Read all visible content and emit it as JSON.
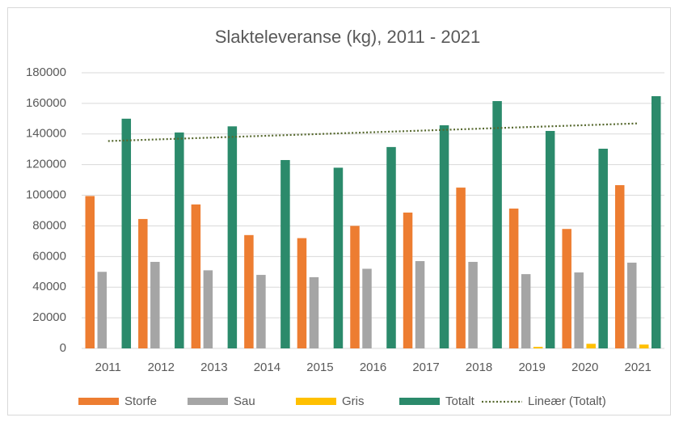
{
  "chart_data": {
    "type": "bar",
    "title": "Slakteleveranse (kg), 2011 - 2021",
    "categories": [
      "2011",
      "2012",
      "2013",
      "2014",
      "2015",
      "2016",
      "2017",
      "2018",
      "2019",
      "2020",
      "2021"
    ],
    "series": [
      {
        "name": "Storfe",
        "color": "#ed7d31",
        "values": [
          99500,
          84500,
          94000,
          74000,
          72000,
          80000,
          88700,
          105000,
          91300,
          78000,
          106600
        ]
      },
      {
        "name": "Sau",
        "color": "#a5a5a5",
        "values": [
          50000,
          56500,
          51000,
          48000,
          46500,
          52000,
          57000,
          56500,
          48500,
          49600,
          56000
        ]
      },
      {
        "name": "Gris",
        "color": "#ffc000",
        "values": [
          0,
          0,
          0,
          0,
          0,
          0,
          0,
          0,
          1000,
          3000,
          2500
        ]
      },
      {
        "name": "Totalt",
        "color": "#2b8a6b",
        "values": [
          150000,
          141000,
          145000,
          123000,
          118000,
          131500,
          145700,
          161500,
          142000,
          130400,
          164700
        ]
      }
    ],
    "trendline": {
      "name": "Lineær (Totalt)",
      "color": "#56682e"
    },
    "ylim": [
      0,
      180000
    ],
    "yticks": [
      0,
      20000,
      40000,
      60000,
      80000,
      100000,
      120000,
      140000,
      160000,
      180000
    ],
    "grid": true,
    "legend": "bottom"
  }
}
